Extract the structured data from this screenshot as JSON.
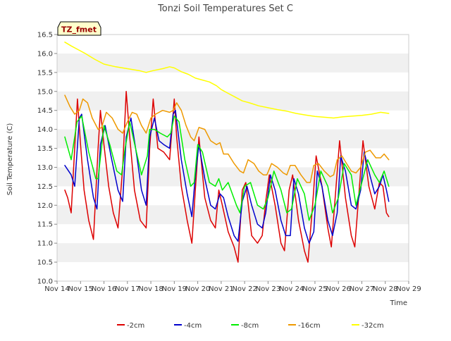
{
  "chart_data": {
    "type": "line",
    "title": "Tonzi Soil Temperatures Set C",
    "xlabel": "Time",
    "ylabel": "Soil Temperature (C)",
    "annotation": "TZ_fmet",
    "xlim": [
      14,
      29
    ],
    "ylim": [
      10.0,
      16.5
    ],
    "yticks": [
      10.0,
      10.5,
      11.0,
      11.5,
      12.0,
      12.5,
      13.0,
      13.5,
      14.0,
      14.5,
      15.0,
      15.5,
      16.0,
      16.5
    ],
    "ytick_labels": [
      "10.0",
      "10.5",
      "11.0",
      "11.5",
      "12.0",
      "12.5",
      "13.0",
      "13.5",
      "14.0",
      "14.5",
      "15.0",
      "15.5",
      "16.0",
      "16.5"
    ],
    "xticks": [
      14,
      15,
      16,
      17,
      18,
      19,
      20,
      21,
      22,
      23,
      24,
      25,
      26,
      27,
      28,
      29
    ],
    "xtick_labels": [
      "Nov 14",
      "Nov 15",
      "Nov 16",
      "Nov 17",
      "Nov 18",
      "Nov 19",
      "Nov 20",
      "Nov 21",
      "Nov 22",
      "Nov 23",
      "Nov 24",
      "Nov 25",
      "Nov 26",
      "Nov 27",
      "Nov 28",
      "Nov 29"
    ],
    "grid": "horizontal-bands",
    "legend_position": "bottom",
    "series": [
      {
        "name": "-2cm",
        "color": "#dd0000",
        "x": [
          14.33,
          14.45,
          14.6,
          14.75,
          14.87,
          15.0,
          15.15,
          15.35,
          15.55,
          15.75,
          15.85,
          16.0,
          16.2,
          16.4,
          16.6,
          16.8,
          16.95,
          17.1,
          17.3,
          17.55,
          17.8,
          17.95,
          18.1,
          18.3,
          18.55,
          18.8,
          19.0,
          19.1,
          19.3,
          19.55,
          19.75,
          19.92,
          20.05,
          20.3,
          20.55,
          20.75,
          20.9,
          21.05,
          21.3,
          21.55,
          21.72,
          21.9,
          22.05,
          22.3,
          22.55,
          22.75,
          22.9,
          23.05,
          23.3,
          23.55,
          23.7,
          23.9,
          24.05,
          24.3,
          24.55,
          24.7,
          24.9,
          25.05,
          25.3,
          25.55,
          25.7,
          25.9,
          26.05,
          26.3,
          26.55,
          26.7,
          26.9,
          27.05,
          27.3,
          27.55,
          27.75,
          27.9,
          28.05,
          28.15
        ],
        "y": [
          12.4,
          12.2,
          11.8,
          13.5,
          14.8,
          13.6,
          12.4,
          11.6,
          11.1,
          13.5,
          14.5,
          13.6,
          12.5,
          11.8,
          11.4,
          13.0,
          15.0,
          13.8,
          12.4,
          11.6,
          11.4,
          13.5,
          14.8,
          13.5,
          13.4,
          13.2,
          14.8,
          13.8,
          12.5,
          11.6,
          11.0,
          12.6,
          13.8,
          12.2,
          11.6,
          11.4,
          12.4,
          12.0,
          11.3,
          10.9,
          10.5,
          12.4,
          12.6,
          11.2,
          11.0,
          11.2,
          12.1,
          12.8,
          12.0,
          11.0,
          10.8,
          12.4,
          12.8,
          11.6,
          10.8,
          10.5,
          12.0,
          13.3,
          12.5,
          11.4,
          10.9,
          12.5,
          13.7,
          12.2,
          11.2,
          10.9,
          12.5,
          13.7,
          12.5,
          11.9,
          12.6,
          12.5,
          11.8,
          11.7
        ]
      },
      {
        "name": "-4cm",
        "color": "#0000cc",
        "x": [
          14.33,
          14.6,
          14.75,
          14.95,
          15.05,
          15.3,
          15.55,
          15.7,
          15.85,
          16.05,
          16.3,
          16.6,
          16.8,
          16.95,
          17.15,
          17.4,
          17.6,
          17.8,
          17.95,
          18.15,
          18.35,
          18.55,
          18.8,
          18.95,
          19.05,
          19.3,
          19.55,
          19.75,
          19.9,
          20.05,
          20.3,
          20.55,
          20.75,
          20.95,
          21.1,
          21.3,
          21.55,
          21.72,
          21.9,
          22.1,
          22.3,
          22.55,
          22.75,
          22.9,
          23.1,
          23.3,
          23.55,
          23.75,
          23.95,
          24.1,
          24.3,
          24.55,
          24.75,
          24.95,
          25.1,
          25.3,
          25.55,
          25.75,
          25.95,
          26.1,
          26.3,
          26.55,
          26.75,
          26.95,
          27.1,
          27.3,
          27.55,
          27.75,
          27.9,
          28.05,
          28.15
        ],
        "y": [
          13.05,
          12.8,
          12.5,
          14.3,
          14.4,
          13.2,
          12.2,
          11.9,
          13.6,
          14.1,
          13.3,
          12.4,
          12.1,
          13.8,
          14.3,
          13.3,
          12.4,
          12.0,
          13.8,
          14.3,
          13.7,
          13.6,
          13.5,
          14.4,
          14.5,
          13.2,
          12.3,
          11.7,
          12.8,
          13.6,
          12.7,
          12.0,
          11.9,
          12.3,
          12.2,
          11.7,
          11.2,
          11.05,
          12.1,
          12.5,
          12.0,
          11.5,
          11.4,
          11.8,
          12.8,
          12.4,
          11.6,
          11.2,
          11.2,
          12.7,
          12.3,
          11.4,
          11.0,
          11.3,
          12.9,
          12.5,
          11.6,
          11.2,
          11.8,
          13.3,
          12.9,
          12.0,
          11.9,
          12.4,
          13.4,
          12.9,
          12.3,
          12.5,
          12.8,
          12.4,
          12.1
        ]
      },
      {
        "name": "-8cm",
        "color": "#00ee00",
        "x": [
          14.33,
          14.6,
          14.85,
          15.05,
          15.35,
          15.65,
          15.75,
          16.0,
          16.25,
          16.55,
          16.75,
          16.9,
          17.1,
          17.35,
          17.6,
          17.85,
          17.95,
          18.15,
          18.4,
          18.7,
          18.85,
          19.0,
          19.2,
          19.45,
          19.7,
          19.85,
          20.0,
          20.2,
          20.5,
          20.75,
          20.9,
          21.05,
          21.3,
          21.65,
          21.8,
          22.0,
          22.25,
          22.55,
          22.8,
          23.0,
          23.25,
          23.55,
          23.8,
          24.0,
          24.25,
          24.55,
          24.75,
          25.0,
          25.25,
          25.55,
          25.75,
          26.0,
          26.25,
          26.55,
          26.75,
          27.0,
          27.25,
          27.55,
          27.75,
          27.95,
          28.15
        ],
        "y": [
          13.8,
          13.2,
          14.2,
          14.35,
          13.4,
          12.7,
          12.7,
          14.1,
          13.6,
          12.9,
          12.8,
          13.5,
          14.2,
          13.5,
          12.8,
          13.3,
          14.0,
          14.0,
          13.9,
          13.8,
          13.9,
          14.35,
          14.2,
          13.2,
          12.5,
          12.6,
          13.6,
          13.4,
          12.6,
          12.5,
          12.7,
          12.4,
          12.6,
          12.0,
          11.8,
          12.5,
          12.6,
          12.0,
          11.9,
          12.2,
          12.9,
          12.4,
          11.8,
          11.9,
          12.7,
          12.3,
          11.6,
          12.0,
          12.9,
          12.5,
          11.8,
          12.2,
          13.1,
          12.8,
          12.0,
          12.6,
          13.2,
          12.8,
          12.6,
          12.9,
          12.5
        ]
      },
      {
        "name": "-16cm",
        "color": "#ee9900",
        "x": [
          14.33,
          14.55,
          14.75,
          14.95,
          15.1,
          15.3,
          15.5,
          15.75,
          15.9,
          16.1,
          16.35,
          16.6,
          16.8,
          17.0,
          17.2,
          17.4,
          17.6,
          17.8,
          18.0,
          18.2,
          18.5,
          18.8,
          18.95,
          19.1,
          19.3,
          19.5,
          19.7,
          19.85,
          20.05,
          20.3,
          20.55,
          20.8,
          20.95,
          21.1,
          21.3,
          21.55,
          21.8,
          21.95,
          22.15,
          22.4,
          22.6,
          22.8,
          22.95,
          23.15,
          23.4,
          23.65,
          23.8,
          23.95,
          24.15,
          24.4,
          24.65,
          24.8,
          24.95,
          25.15,
          25.4,
          25.65,
          25.8,
          25.95,
          26.15,
          26.35,
          26.55,
          26.75,
          26.95,
          27.15,
          27.35,
          27.6,
          27.8,
          27.95,
          28.15
        ],
        "y": [
          14.9,
          14.6,
          14.4,
          14.5,
          14.8,
          14.7,
          14.3,
          14.0,
          14.05,
          14.45,
          14.3,
          14.0,
          13.9,
          14.2,
          14.45,
          14.4,
          14.1,
          13.9,
          14.3,
          14.4,
          14.5,
          14.45,
          14.5,
          14.7,
          14.5,
          14.1,
          13.8,
          13.7,
          14.05,
          14.0,
          13.7,
          13.6,
          13.65,
          13.35,
          13.35,
          13.1,
          12.9,
          12.85,
          13.2,
          13.1,
          12.9,
          12.8,
          12.8,
          13.1,
          13.0,
          12.85,
          12.8,
          13.05,
          13.05,
          12.8,
          12.6,
          12.6,
          13.05,
          13.1,
          12.9,
          12.75,
          12.8,
          13.2,
          13.3,
          13.1,
          12.9,
          12.85,
          13.0,
          13.4,
          13.45,
          13.25,
          13.25,
          13.35,
          13.2
        ]
      },
      {
        "name": "-32cm",
        "color": "#ffff00",
        "x": [
          14.33,
          14.6,
          14.9,
          15.2,
          15.6,
          16.0,
          16.5,
          17.0,
          17.5,
          17.8,
          18.1,
          18.5,
          18.8,
          19.0,
          19.3,
          19.6,
          19.9,
          20.2,
          20.5,
          20.8,
          21.0,
          21.3,
          21.6,
          21.9,
          22.2,
          22.6,
          23.0,
          23.4,
          23.8,
          24.2,
          24.6,
          25.0,
          25.4,
          25.8,
          26.2,
          26.6,
          27.0,
          27.4,
          27.8,
          28.15
        ],
        "y": [
          16.3,
          16.2,
          16.1,
          16.0,
          15.85,
          15.72,
          15.65,
          15.6,
          15.55,
          15.5,
          15.55,
          15.6,
          15.65,
          15.62,
          15.52,
          15.45,
          15.35,
          15.3,
          15.25,
          15.15,
          15.05,
          14.95,
          14.85,
          14.75,
          14.7,
          14.62,
          14.57,
          14.52,
          14.48,
          14.42,
          14.38,
          14.34,
          14.32,
          14.3,
          14.33,
          14.35,
          14.37,
          14.4,
          14.45,
          14.42
        ]
      }
    ]
  }
}
